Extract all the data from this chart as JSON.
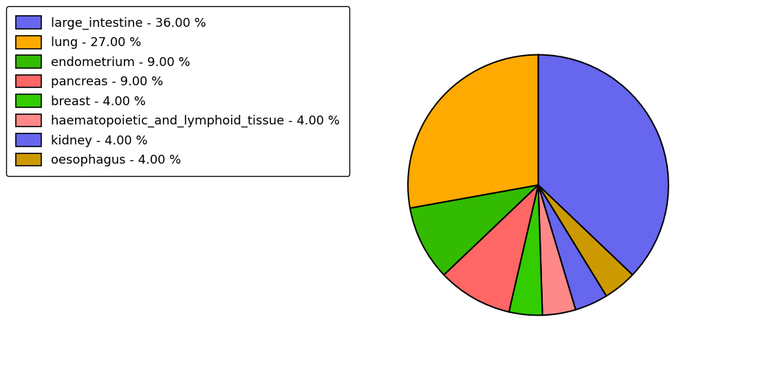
{
  "labels": [
    "large_intestine",
    "oesophagus",
    "kidney",
    "haematopoietic_and_lymphoid_tissue",
    "breast",
    "pancreas",
    "endometrium",
    "lung"
  ],
  "values": [
    36,
    4,
    4,
    4,
    4,
    9,
    9,
    27
  ],
  "colors": [
    "#6666EE",
    "#CC9900",
    "#6666EE",
    "#FF8888",
    "#33CC00",
    "#FF6666",
    "#33BB00",
    "#FFAA00"
  ],
  "legend_colors": [
    "#6666EE",
    "#FFAA00",
    "#33BB00",
    "#FF6666",
    "#33CC00",
    "#FF8888",
    "#6666EE",
    "#CC9900"
  ],
  "legend_labels": [
    "large_intestine - 36.00 %",
    "lung - 27.00 %",
    "endometrium - 9.00 %",
    "pancreas - 9.00 %",
    "breast - 4.00 %",
    "haematopoietic_and_lymphoid_tissue - 4.00 %",
    "kidney - 4.00 %",
    "oesophagus - 4.00 %"
  ],
  "startangle": 90,
  "counterclock": false,
  "figsize": [
    11.34,
    5.38
  ],
  "dpi": 100,
  "legend_fontsize": 13
}
